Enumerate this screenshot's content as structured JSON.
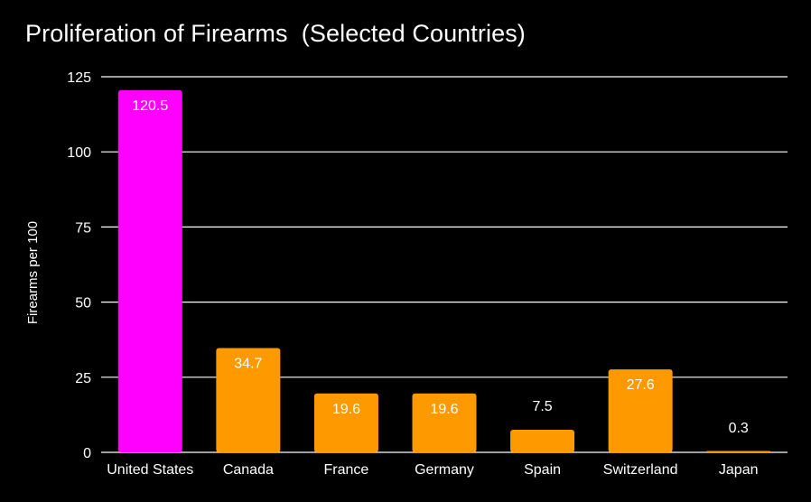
{
  "chart_data": {
    "type": "bar",
    "title": "Proliferation of Firearms  (Selected Countries)",
    "xlabel": "",
    "ylabel": "Firearms per 100",
    "ylim": [
      0,
      125
    ],
    "yticks": [
      0,
      25,
      50,
      75,
      100,
      125
    ],
    "grid": true,
    "categories": [
      "United States",
      "Canada",
      "France",
      "Germany",
      "Spain",
      "Switzerland",
      "Japan"
    ],
    "values": [
      120.5,
      34.7,
      19.6,
      19.6,
      7.5,
      27.6,
      0.3
    ],
    "data_labels": [
      "120.5",
      "34.7",
      "19.6",
      "19.6",
      "7.5",
      "27.6",
      "0.3"
    ],
    "colors": [
      "#ff00ff",
      "#ff9900",
      "#ff9900",
      "#ff9900",
      "#ff9900",
      "#ff9900",
      "#ff9900"
    ]
  },
  "colors": {
    "background": "#000000",
    "text": "#ffffff",
    "highlight_bar": "#ff00ff",
    "bar": "#ff9900"
  }
}
